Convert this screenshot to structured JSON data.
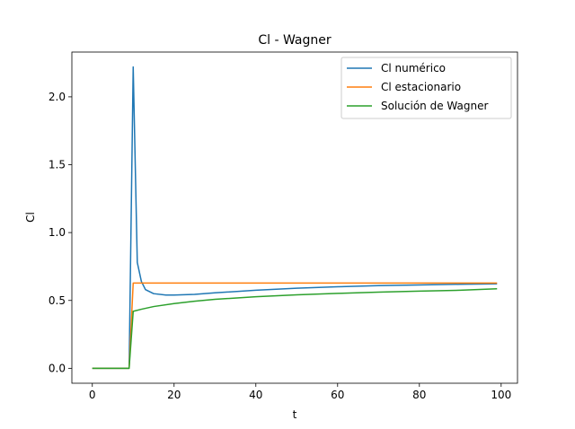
{
  "chart_data": {
    "type": "line",
    "title": "Cl - Wagner",
    "xlabel": "t",
    "ylabel": "Cl",
    "xlim": [
      -5,
      104
    ],
    "ylim": [
      -0.11,
      2.33
    ],
    "xticks": [
      0,
      20,
      40,
      60,
      80,
      100
    ],
    "xtick_labels": [
      "0",
      "20",
      "40",
      "60",
      "80",
      "100"
    ],
    "yticks": [
      0.0,
      0.5,
      1.0,
      1.5,
      2.0
    ],
    "ytick_labels": [
      "0.0",
      "0.5",
      "1.0",
      "1.5",
      "2.0"
    ],
    "grid": false,
    "legend_position": "top-right",
    "series": [
      {
        "name": "Cl numérico",
        "color": "#1f77b4",
        "x": [
          0,
          9,
          10,
          11,
          12,
          13,
          15,
          18,
          20,
          25,
          30,
          40,
          50,
          60,
          70,
          80,
          90,
          99
        ],
        "y": [
          0.0,
          0.0,
          2.22,
          0.78,
          0.64,
          0.58,
          0.55,
          0.54,
          0.54,
          0.545,
          0.556,
          0.575,
          0.59,
          0.601,
          0.609,
          0.614,
          0.619,
          0.622
        ]
      },
      {
        "name": "Cl estacionario",
        "color": "#ff7f0e",
        "x": [
          0,
          9,
          10,
          99
        ],
        "y": [
          0.0,
          0.0,
          0.628,
          0.628
        ]
      },
      {
        "name": "Solución de Wagner",
        "color": "#2ca02c",
        "x": [
          0,
          9,
          10,
          12,
          15,
          20,
          25,
          30,
          40,
          50,
          60,
          70,
          80,
          90,
          99
        ],
        "y": [
          0.0,
          0.0,
          0.42,
          0.435,
          0.455,
          0.477,
          0.494,
          0.508,
          0.527,
          0.541,
          0.552,
          0.561,
          0.569,
          0.575,
          0.586
        ]
      }
    ]
  }
}
